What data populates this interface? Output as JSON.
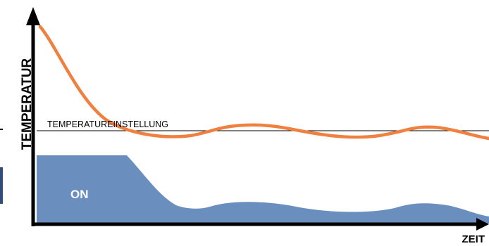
{
  "labels": {
    "y_axis": "TEMPERATUR",
    "x_axis": "ZEIT",
    "setpoint": "TEMPERATUREINSTELLUNG",
    "heater_state": "ON"
  },
  "colors": {
    "temperature_curve": "#f08040",
    "heater_area": "#6a8fbf",
    "axis": "#000000",
    "setpoint_line": "#000000",
    "left_edge_mark": "#2f4f7a"
  }
}
